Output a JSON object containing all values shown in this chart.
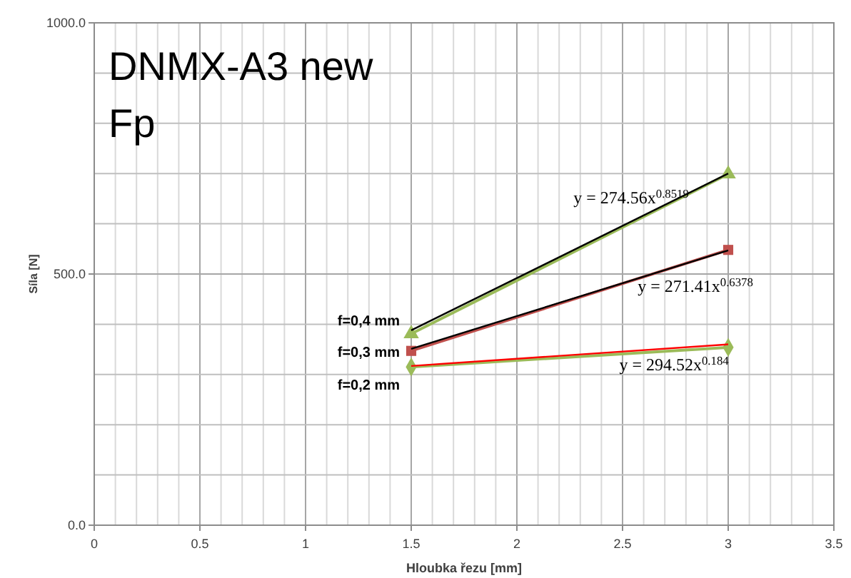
{
  "chart_data": {
    "type": "line",
    "title": "DNMX-A3 new\nFp",
    "xlabel": "Hloubka  řezu [mm]",
    "ylabel": "Síla [N]",
    "xlim": [
      0,
      3.5
    ],
    "xticks": [
      0,
      {
        "value": 0.1,
        "label": null
      },
      {
        "value": 0.2,
        "label": null
      },
      {
        "value": 0.3,
        "label": null
      },
      {
        "value": 0.4,
        "label": null
      },
      0.5,
      {
        "value": 0.6,
        "label": null
      },
      {
        "value": 0.7,
        "label": null
      },
      {
        "value": 0.8,
        "label": null
      },
      {
        "value": 0.9,
        "label": null
      },
      1,
      {
        "value": 1.1,
        "label": null
      },
      {
        "value": 1.2,
        "label": null
      },
      {
        "value": 1.3,
        "label": null
      },
      {
        "value": 1.4,
        "label": null
      },
      1.5,
      {
        "value": 1.6,
        "label": null
      },
      {
        "value": 1.7,
        "label": null
      },
      {
        "value": 1.8,
        "label": null
      },
      {
        "value": 1.9,
        "label": null
      },
      2,
      {
        "value": 2.1,
        "label": null
      },
      {
        "value": 2.2,
        "label": null
      },
      {
        "value": 2.3,
        "label": null
      },
      {
        "value": 2.4,
        "label": null
      },
      2.5,
      {
        "value": 2.6,
        "label": null
      },
      {
        "value": 2.7,
        "label": null
      },
      {
        "value": 2.8,
        "label": null
      },
      {
        "value": 2.9,
        "label": null
      },
      3,
      {
        "value": 3.1,
        "label": null
      },
      {
        "value": 3.2,
        "label": null
      },
      {
        "value": 3.3,
        "label": null
      },
      {
        "value": 3.4,
        "label": null
      },
      3.5
    ],
    "ylim": [
      0,
      1000
    ],
    "yticks": [
      {
        "value": 0,
        "label": "0.0"
      },
      {
        "value": 100,
        "label": null
      },
      {
        "value": 200,
        "label": null
      },
      {
        "value": 300,
        "label": null
      },
      {
        "value": 400,
        "label": null
      },
      {
        "value": 500,
        "label": "500.0"
      },
      {
        "value": 600,
        "label": null
      },
      {
        "value": 700,
        "label": null
      },
      {
        "value": 800,
        "label": null
      },
      {
        "value": 900,
        "label": null
      },
      {
        "value": 1000,
        "label": "1000.0"
      }
    ],
    "grid": true,
    "x": [
      1.5,
      3
    ],
    "series": [
      {
        "name": "f=0,4 mm",
        "color": "#9bbb59",
        "marker": "triangle",
        "values": [
          381,
          699
        ]
      },
      {
        "name": "f=0,3 mm",
        "color": "#c0504d",
        "marker": "square",
        "values": [
          347,
          548
        ]
      },
      {
        "name": "f=0,2 mm",
        "color": "#9bbb59",
        "marker": "diamond",
        "values": [
          315,
          354
        ]
      },
      {
        "name": "y = 274.56x$^{0.8519}$",
        "color": "#000000",
        "marker": "none",
        "values": [
          388,
          700
        ]
      },
      {
        "name": "y = 271.41x$^{0.6378}$",
        "color": "#000000",
        "marker": "none",
        "values": [
          351,
          547
        ]
      },
      {
        "name": "y = 294.52x$^{0.184}$",
        "color": "#ff0000",
        "marker": "none",
        "values": [
          317,
          360
        ]
      }
    ]
  }
}
